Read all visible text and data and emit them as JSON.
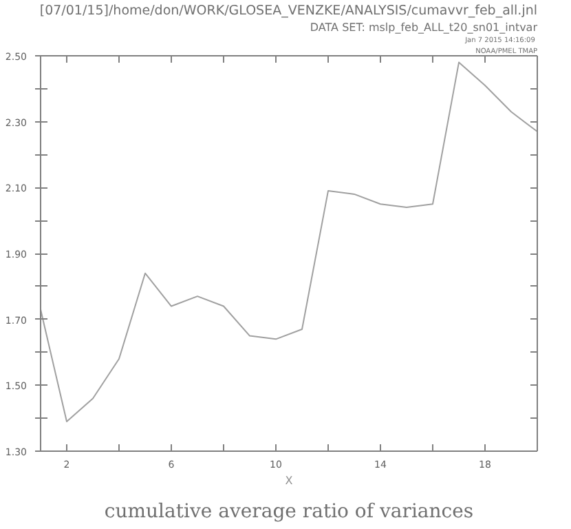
{
  "chart_data": {
    "type": "line",
    "title": "cumulative average ratio of variances",
    "xlabel": "X",
    "annotations": [
      "NOAA/PMEL TMAP",
      "Jan  7 2015 14:16:09",
      "DATA SET: mslp_feb_ALL_t20_sn01_intvar",
      "[07/01/15]/home/don/WORK/GLOSEA_VENZKE/ANALYSIS/cumavvr_feb_all.jnl"
    ],
    "x": [
      1,
      2,
      3,
      4,
      5,
      6,
      7,
      8,
      9,
      10,
      11,
      12,
      13,
      14,
      15,
      16,
      17,
      18,
      19,
      20
    ],
    "series": [
      {
        "color": "#a0a0a0",
        "values": [
          1.73,
          1.39,
          1.46,
          1.58,
          1.84,
          1.74,
          1.77,
          1.74,
          1.65,
          1.64,
          1.67,
          2.09,
          2.08,
          2.05,
          2.04,
          2.05,
          2.48,
          2.41,
          2.33,
          2.27
        ]
      }
    ],
    "xlim": [
      1,
      20
    ],
    "ylim": [
      1.3,
      2.5
    ],
    "xticks": [
      2,
      {
        "value": 4,
        "label": null
      },
      6,
      {
        "value": 8,
        "label": null
      },
      10,
      {
        "value": 12,
        "label": null
      },
      14,
      {
        "value": 16,
        "label": null
      },
      18,
      {
        "value": 20,
        "label": null
      }
    ],
    "yticks": [
      {
        "value": 1.3,
        "label": "1.30"
      },
      {
        "value": 1.4,
        "label": null
      },
      {
        "value": 1.5,
        "label": "1.50"
      },
      {
        "value": 1.6,
        "label": null
      },
      {
        "value": 1.7,
        "label": "1.70"
      },
      {
        "value": 1.8,
        "label": null
      },
      {
        "value": 1.9,
        "label": "1.90"
      },
      {
        "value": 2.0,
        "label": null
      },
      {
        "value": 2.1,
        "label": "2.10"
      },
      {
        "value": 2.2,
        "label": null
      },
      {
        "value": 2.3,
        "label": "2.30"
      },
      {
        "value": 2.4,
        "label": null
      },
      {
        "value": 2.5,
        "label": "2.50"
      }
    ],
    "grid": false,
    "marker": "none",
    "line_style": "solid"
  }
}
